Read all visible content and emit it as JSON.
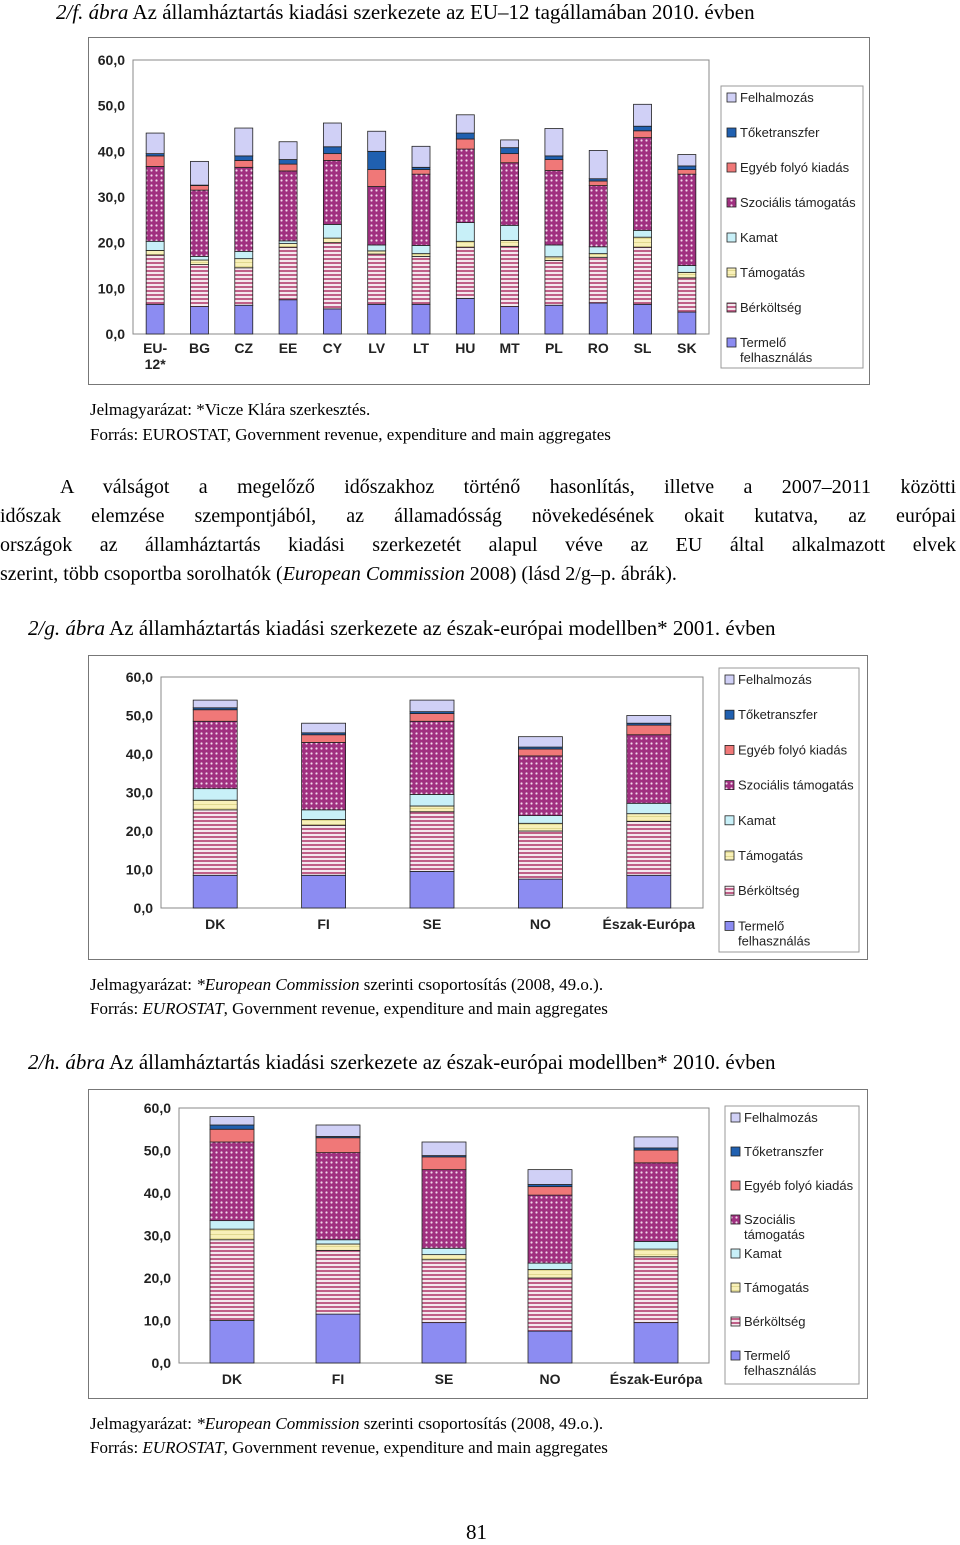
{
  "fig_f": {
    "title_num": "2/f.",
    "title_abra": "ábra",
    "title_rest": "Az államháztartás kiadási szerkezete az EU–12 tagállamában 2010. évben",
    "note_label": "Jelmagyarázat:",
    "note_text": "*Vicze Klára szerkesztés.",
    "source_label": "Forrás:",
    "source_text": "EUROSTAT, Government revenue, expenditure and main aggregates"
  },
  "paragraph": {
    "l1": "A válságot a megelőző időszakhoz történő hasonlítás, illetve a 2007–2011 közötti",
    "l2": "időszak elemzése szempontjából, az államadósság növekedésének okait kutatva, az európai",
    "l3": "országok az államháztartás kiadási szerkezetét alapul véve az EU által alkalmazott elvek",
    "l4a": "szerint, több csoportba sorolhatók (",
    "l4b": "European Commission",
    "l4c": " 2008) (lásd 2/g–p. ábrák)."
  },
  "fig_g": {
    "title_num": "2/g.",
    "title_abra": "ábra",
    "title_rest": "Az államháztartás kiadási szerkezete az észak-európai modellben* 2001. évben",
    "note_label": "Jelmagyarázat:",
    "note_italic": "*European Commission",
    "note_text": " szerinti csoportosítás (2008, 49.o.).",
    "source_label": "Forrás:",
    "source_italic": "EUROSTAT",
    "source_text": ", Government revenue, expenditure and main aggregates"
  },
  "fig_h": {
    "title_num": "2/h.",
    "title_abra": "ábra",
    "title_rest": "Az államháztartás kiadási szerkezete az észak-európai modellben* 2010. évben",
    "note_label": "Jelmagyarázat:",
    "note_italic": "*European Commission",
    "note_text": " szerinti csoportosítás (2008, 49.o.).",
    "source_label": "Forrás:",
    "source_italic": "EUROSTAT",
    "source_text": ", Government revenue, expenditure and main aggregates"
  },
  "page_number": "81",
  "colors": {
    "termelo": "#8c8cf2",
    "berkoltseg": "#c06088",
    "tamogatas": "#f8f0b8",
    "kamat": "#c8f0f8",
    "szocialis": "#a03080",
    "egyeb": "#f07878",
    "toketranszfer": "#2060b0",
    "felhalmozas": "#d0d0f6"
  },
  "chart_data": [
    {
      "type": "bar",
      "stacked": true,
      "categories": [
        "EU-12*",
        "BG",
        "CZ",
        "EE",
        "CY",
        "LV",
        "LT",
        "HU",
        "MT",
        "PL",
        "RO",
        "SL",
        "SK"
      ],
      "ylim": [
        0,
        60
      ],
      "yticks": [
        "0,0",
        "10,0",
        "20,0",
        "30,0",
        "40,0",
        "50,0",
        "60,0"
      ],
      "grid": false,
      "legend_position": "right",
      "series": [
        {
          "name": "Termelő felhasználás",
          "values": [
            6.5,
            6.0,
            6.3,
            7.5,
            5.5,
            6.5,
            6.5,
            7.8,
            6.0,
            6.3,
            6.8,
            6.5,
            4.8
          ]
        },
        {
          "name": "Bérköltség",
          "values": [
            10.8,
            9.2,
            8.2,
            11.5,
            14.5,
            11.0,
            10.5,
            11.2,
            13.2,
            9.8,
            10.0,
            12.5,
            7.5
          ]
        },
        {
          "name": "Támogatás",
          "values": [
            1.0,
            1.0,
            2.0,
            0.8,
            1.0,
            0.7,
            0.6,
            1.3,
            1.3,
            0.8,
            0.8,
            2.2,
            1.2
          ]
        },
        {
          "name": "Kamat",
          "values": [
            2.0,
            0.8,
            1.6,
            0.6,
            3.0,
            1.3,
            1.8,
            4.1,
            3.3,
            2.6,
            1.5,
            1.5,
            1.5
          ]
        },
        {
          "name": "Szociális támogatás",
          "values": [
            16.4,
            14.5,
            18.4,
            15.3,
            14.0,
            12.8,
            15.6,
            16.1,
            13.7,
            16.3,
            13.4,
            20.3,
            20.0
          ]
        },
        {
          "name": "Egyéb folyó kiadás",
          "values": [
            2.3,
            1.0,
            1.5,
            1.5,
            1.5,
            3.7,
            1.0,
            2.2,
            2.0,
            2.4,
            1.0,
            1.5,
            1.0
          ]
        },
        {
          "name": "Tőketranszfer",
          "values": [
            0.5,
            0.1,
            1.0,
            1.0,
            1.5,
            4.0,
            0.5,
            1.3,
            1.3,
            0.8,
            0.5,
            1.0,
            0.8
          ]
        },
        {
          "name": "Felhalmozás",
          "values": [
            4.5,
            5.2,
            6.1,
            3.9,
            5.2,
            4.4,
            4.6,
            4.0,
            1.7,
            6.0,
            6.2,
            4.8,
            2.5
          ]
        }
      ]
    },
    {
      "type": "bar",
      "stacked": true,
      "categories": [
        "DK",
        "FI",
        "SE",
        "NO",
        "Észak-Európa"
      ],
      "ylim": [
        0,
        60
      ],
      "yticks": [
        "0,0",
        "10,0",
        "20,0",
        "30,0",
        "40,0",
        "50,0",
        "60,0"
      ],
      "grid": false,
      "legend_position": "right",
      "series": [
        {
          "name": "Termelő felhasználás",
          "values": [
            8.5,
            8.5,
            9.5,
            7.5,
            8.5
          ]
        },
        {
          "name": "Bérköltség",
          "values": [
            17.0,
            13.0,
            15.5,
            12.5,
            14.0
          ]
        },
        {
          "name": "Támogatás",
          "values": [
            2.5,
            1.5,
            1.5,
            2.0,
            2.0
          ]
        },
        {
          "name": "Kamat",
          "values": [
            3.0,
            2.5,
            3.0,
            2.0,
            2.7
          ]
        },
        {
          "name": "Szociális támogatás",
          "values": [
            17.5,
            17.5,
            19.0,
            15.5,
            17.8
          ]
        },
        {
          "name": "Egyéb folyó kiadás",
          "values": [
            3.0,
            2.0,
            2.0,
            1.8,
            2.5
          ]
        },
        {
          "name": "Tőketranszfer",
          "values": [
            0.5,
            0.5,
            0.5,
            0.5,
            0.5
          ]
        },
        {
          "name": "Felhalmozás",
          "values": [
            2.0,
            2.5,
            3.0,
            2.7,
            2.0
          ]
        }
      ]
    },
    {
      "type": "bar",
      "stacked": true,
      "categories": [
        "DK",
        "FI",
        "SE",
        "NO",
        "Észak-Európa"
      ],
      "ylim": [
        0,
        60
      ],
      "yticks": [
        "0,0",
        "10,0",
        "20,0",
        "30,0",
        "40,0",
        "50,0",
        "60,0"
      ],
      "grid": false,
      "legend_position": "right",
      "series": [
        {
          "name": "Termelő felhasználás",
          "values": [
            10.0,
            11.5,
            9.5,
            7.5,
            9.5
          ]
        },
        {
          "name": "Bérköltség",
          "values": [
            19.0,
            15.0,
            14.8,
            12.5,
            15.5
          ]
        },
        {
          "name": "Támogatás",
          "values": [
            2.5,
            1.5,
            1.2,
            2.0,
            1.8
          ]
        },
        {
          "name": "Kamat",
          "values": [
            2.0,
            1.0,
            1.5,
            1.5,
            1.8
          ]
        },
        {
          "name": "Szociális támogatás",
          "values": [
            18.5,
            20.5,
            18.5,
            16.0,
            18.5
          ]
        },
        {
          "name": "Egyéb folyó kiadás",
          "values": [
            3.0,
            3.5,
            3.0,
            2.0,
            3.0
          ]
        },
        {
          "name": "Tőketranszfer",
          "values": [
            1.0,
            0.3,
            0.3,
            0.5,
            0.5
          ]
        },
        {
          "name": "Felhalmozás",
          "values": [
            2.0,
            2.7,
            3.2,
            3.5,
            2.6
          ]
        }
      ]
    }
  ]
}
